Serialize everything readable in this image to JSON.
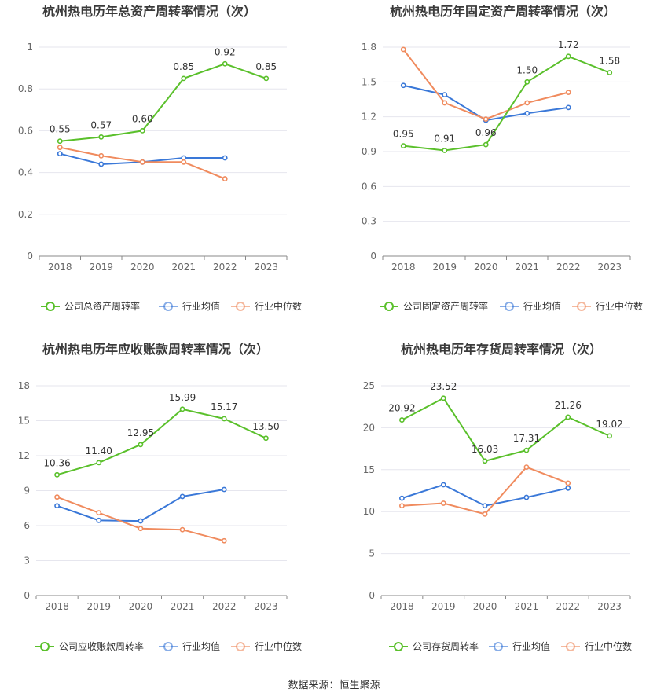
{
  "source": {
    "label": "数据来源：",
    "value": "恒生聚源"
  },
  "chart_data": [
    {
      "type": "line",
      "title": "杭州热电历年总资产周转率情况（次）",
      "categories": [
        "2018",
        "2019",
        "2020",
        "2021",
        "2022",
        "2023"
      ],
      "ylim": [
        0,
        1
      ],
      "yticks": [
        "0",
        "0.2",
        "0.4",
        "0.6",
        "0.8",
        "1"
      ],
      "grid": true,
      "legend": "bottom",
      "series": [
        {
          "name": "公司总资产周转率",
          "color": "#5ac02b",
          "values": [
            0.55,
            0.57,
            0.6,
            0.85,
            0.92,
            0.85
          ],
          "labels": [
            "0.55",
            "0.57",
            "0.60",
            "0.85",
            "0.92",
            "0.85"
          ]
        },
        {
          "name": "行业均值",
          "color": "#3a78d8",
          "values": [
            0.49,
            0.44,
            0.45,
            0.47,
            0.47,
            null
          ]
        },
        {
          "name": "行业中位数",
          "color": "#f08b5e",
          "values": [
            0.52,
            0.48,
            0.45,
            0.45,
            0.37,
            null
          ]
        }
      ]
    },
    {
      "type": "line",
      "title": "杭州热电历年固定资产周转率情况（次）",
      "categories": [
        "2018",
        "2019",
        "2020",
        "2021",
        "2022",
        "2023"
      ],
      "ylim": [
        0,
        1.8
      ],
      "yticks": [
        "0",
        "0.3",
        "0.6",
        "0.9",
        "1.2",
        "1.5",
        "1.8"
      ],
      "grid": true,
      "legend": "bottom",
      "series": [
        {
          "name": "公司固定资产周转率",
          "color": "#5ac02b",
          "values": [
            0.95,
            0.91,
            0.96,
            1.5,
            1.72,
            1.58
          ],
          "labels": [
            "0.95",
            "0.91",
            "0.96",
            "1.50",
            "1.72",
            "1.58"
          ]
        },
        {
          "name": "行业均值",
          "color": "#3a78d8",
          "values": [
            1.47,
            1.39,
            1.17,
            1.23,
            1.28,
            null
          ]
        },
        {
          "name": "行业中位数",
          "color": "#f08b5e",
          "values": [
            1.78,
            1.32,
            1.18,
            1.32,
            1.41,
            null
          ]
        }
      ]
    },
    {
      "type": "line",
      "title": "杭州热电历年应收账款周转率情况（次）",
      "categories": [
        "2018",
        "2019",
        "2020",
        "2021",
        "2022",
        "2023"
      ],
      "ylim": [
        0,
        18
      ],
      "yticks": [
        "0",
        "3",
        "6",
        "9",
        "12",
        "15",
        "18"
      ],
      "grid": true,
      "legend": "bottom",
      "series": [
        {
          "name": "公司应收账款周转率",
          "color": "#5ac02b",
          "values": [
            10.36,
            11.4,
            12.95,
            15.99,
            15.17,
            13.5
          ],
          "labels": [
            "10.36",
            "11.40",
            "12.95",
            "15.99",
            "15.17",
            "13.50"
          ]
        },
        {
          "name": "行业均值",
          "color": "#3a78d8",
          "values": [
            7.7,
            6.45,
            6.4,
            8.5,
            9.1,
            null
          ]
        },
        {
          "name": "行业中位数",
          "color": "#f08b5e",
          "values": [
            8.45,
            7.1,
            5.75,
            5.65,
            4.7,
            null
          ]
        }
      ]
    },
    {
      "type": "line",
      "title": "杭州热电历年存货周转率情况（次）",
      "categories": [
        "2018",
        "2019",
        "2020",
        "2021",
        "2022",
        "2023"
      ],
      "ylim": [
        0,
        25
      ],
      "yticks": [
        "0",
        "5",
        "10",
        "15",
        "20",
        "25"
      ],
      "grid": true,
      "legend": "bottom",
      "series": [
        {
          "name": "公司存货周转率",
          "color": "#5ac02b",
          "values": [
            20.92,
            23.52,
            16.03,
            17.31,
            21.26,
            19.02
          ],
          "labels": [
            "20.92",
            "23.52",
            "16.03",
            "17.31",
            "21.26",
            "19.02"
          ]
        },
        {
          "name": "行业均值",
          "color": "#3a78d8",
          "values": [
            11.6,
            13.2,
            10.7,
            11.7,
            12.8,
            null
          ]
        },
        {
          "name": "行业中位数",
          "color": "#f08b5e",
          "values": [
            10.7,
            11.0,
            9.7,
            15.3,
            13.4,
            null
          ]
        }
      ]
    }
  ]
}
